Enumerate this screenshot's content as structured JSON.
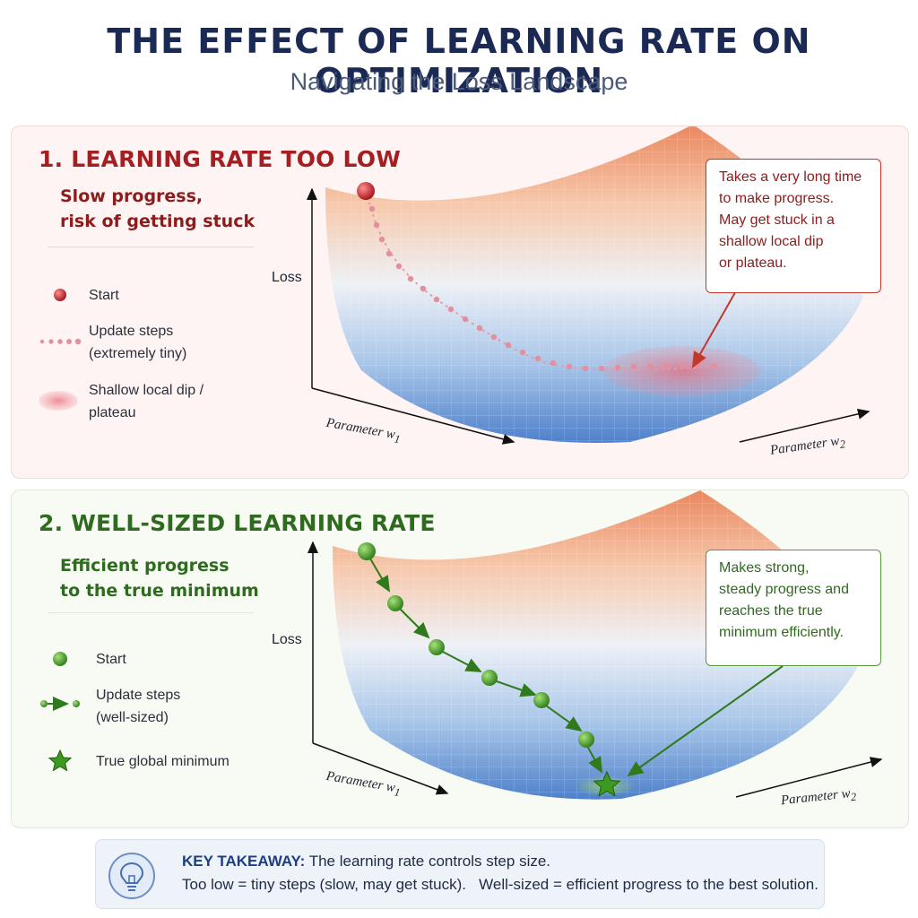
{
  "title": "THE EFFECT OF LEARNING RATE ON OPTIMIZATION",
  "subtitle": "Navigating the Loss Landscape",
  "panel_low": {
    "heading": "1. LEARNING RATE TOO LOW",
    "subheading": "Slow progress,\nrisk of getting stuck",
    "legend": {
      "start": "Start",
      "steps": "Update steps\n(extremely tiny)",
      "dip": "Shallow local dip /\nplateau"
    },
    "callout": "Takes a very long time\nto make progress.\nMay get stuck in a\nshallow local dip\nor plateau.",
    "axis_loss": "Loss",
    "axis_w1": "Parameter w",
    "axis_w1_sub": "1",
    "axis_w2": "Parameter w",
    "axis_w2_sub": "2",
    "color": "#a51e22"
  },
  "panel_good": {
    "heading": "2. WELL-SIZED LEARNING RATE",
    "subheading": "Efficient progress\nto the true minimum",
    "legend": {
      "start": "Start",
      "steps": "Update steps\n(well-sized)",
      "minimum": "True global minimum"
    },
    "callout": "Makes strong,\nsteady progress and\nreaches the true\nminimum efficiently.",
    "axis_loss": "Loss",
    "axis_w1": "Parameter w",
    "axis_w1_sub": "1",
    "axis_w2": "Parameter w",
    "axis_w2_sub": "2",
    "color": "#2f6b1f"
  },
  "takeaway": {
    "label": "KEY TAKEAWAY:",
    "line1": "The learning rate controls step size.",
    "line2": "Too low = tiny steps (slow, may get stuck).   Well-sized = efficient progress to the best solution."
  },
  "icons": {
    "takeaway_icon": "lightbulb-icon",
    "minimum_icon": "star-icon"
  }
}
